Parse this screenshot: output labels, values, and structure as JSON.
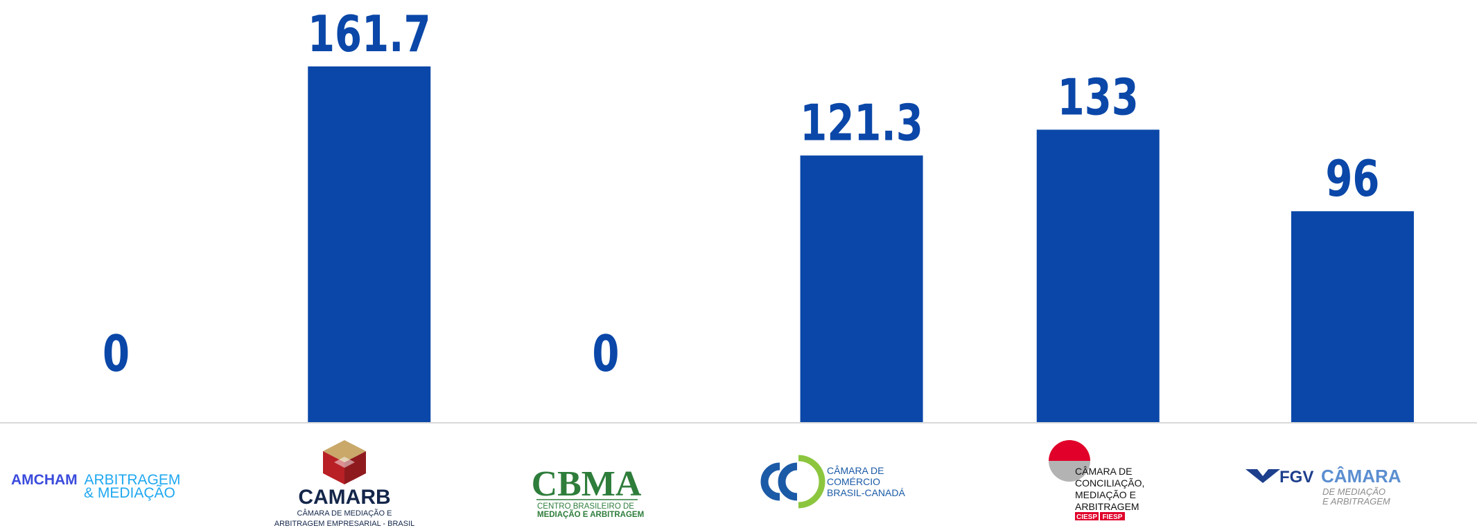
{
  "chart_data": {
    "type": "bar",
    "categories": [
      "AMCHAM ARBITRAGEM & MEDIAÇÃO",
      "CAMARB",
      "CBMA",
      "CCBC",
      "CIESP/FIESP",
      "FGV CÂMARA"
    ],
    "values": [
      0,
      161.7,
      0,
      121.3,
      133,
      96
    ],
    "value_labels": [
      "0",
      "161.7",
      "0",
      "121.3",
      "133",
      "96"
    ],
    "ylim": [
      0,
      161.7
    ],
    "grid": false,
    "bar_color": "#0a47a8"
  },
  "logos": {
    "amcham": {
      "line1a": "AMCHAM",
      "line1b": "ARBITRAGEM",
      "line2": "& MEDIAÇÃO"
    },
    "camarb": {
      "name": "CAMARB",
      "sub1": "CÂMARA DE MEDIAÇÃO E",
      "sub2": "ARBITRAGEM EMPRESARIAL - BRASIL"
    },
    "cbma": {
      "name": "CBMA",
      "sub1": "CENTRO BRASILEIRO DE",
      "sub2": "MEDIAÇÃO E ARBITRAGEM"
    },
    "ccbc": {
      "line1": "CÂMARA DE",
      "line2": "COMÉRCIO",
      "line3": "BRASIL-CANADÁ"
    },
    "ciesp": {
      "line1": "CÂMARA DE",
      "line2": "CONCILIAÇÃO,",
      "line3": "MEDIAÇÃO E",
      "line4": "ARBITRAGEM",
      "tag1": "CIESP",
      "tag2": "FIESP"
    },
    "fgv": {
      "brand": "FGV",
      "name": "CÂMARA",
      "sub1": "DE MEDIAÇÃO",
      "sub2": "E ARBITRAGEM"
    }
  },
  "colors": {
    "bar": "#0a47a8",
    "axis": "#d9d9d9",
    "amcham_dark": "#3a4bdc",
    "amcham_light": "#1fa8f0",
    "camarb_red": "#b82025",
    "camarb_tan": "#c9a86a",
    "camarb_navy": "#14264a",
    "cbma_green": "#2e7d3b",
    "ccbc_blue": "#1b5aa6",
    "ccbc_green": "#8cc63f",
    "ciesp_red": "#e0002a",
    "ciesp_gray": "#b3b3b3",
    "fgv_navy": "#1d3f8c",
    "fgv_light": "#5b8ed0",
    "fgv_gray": "#8c8c8c"
  }
}
